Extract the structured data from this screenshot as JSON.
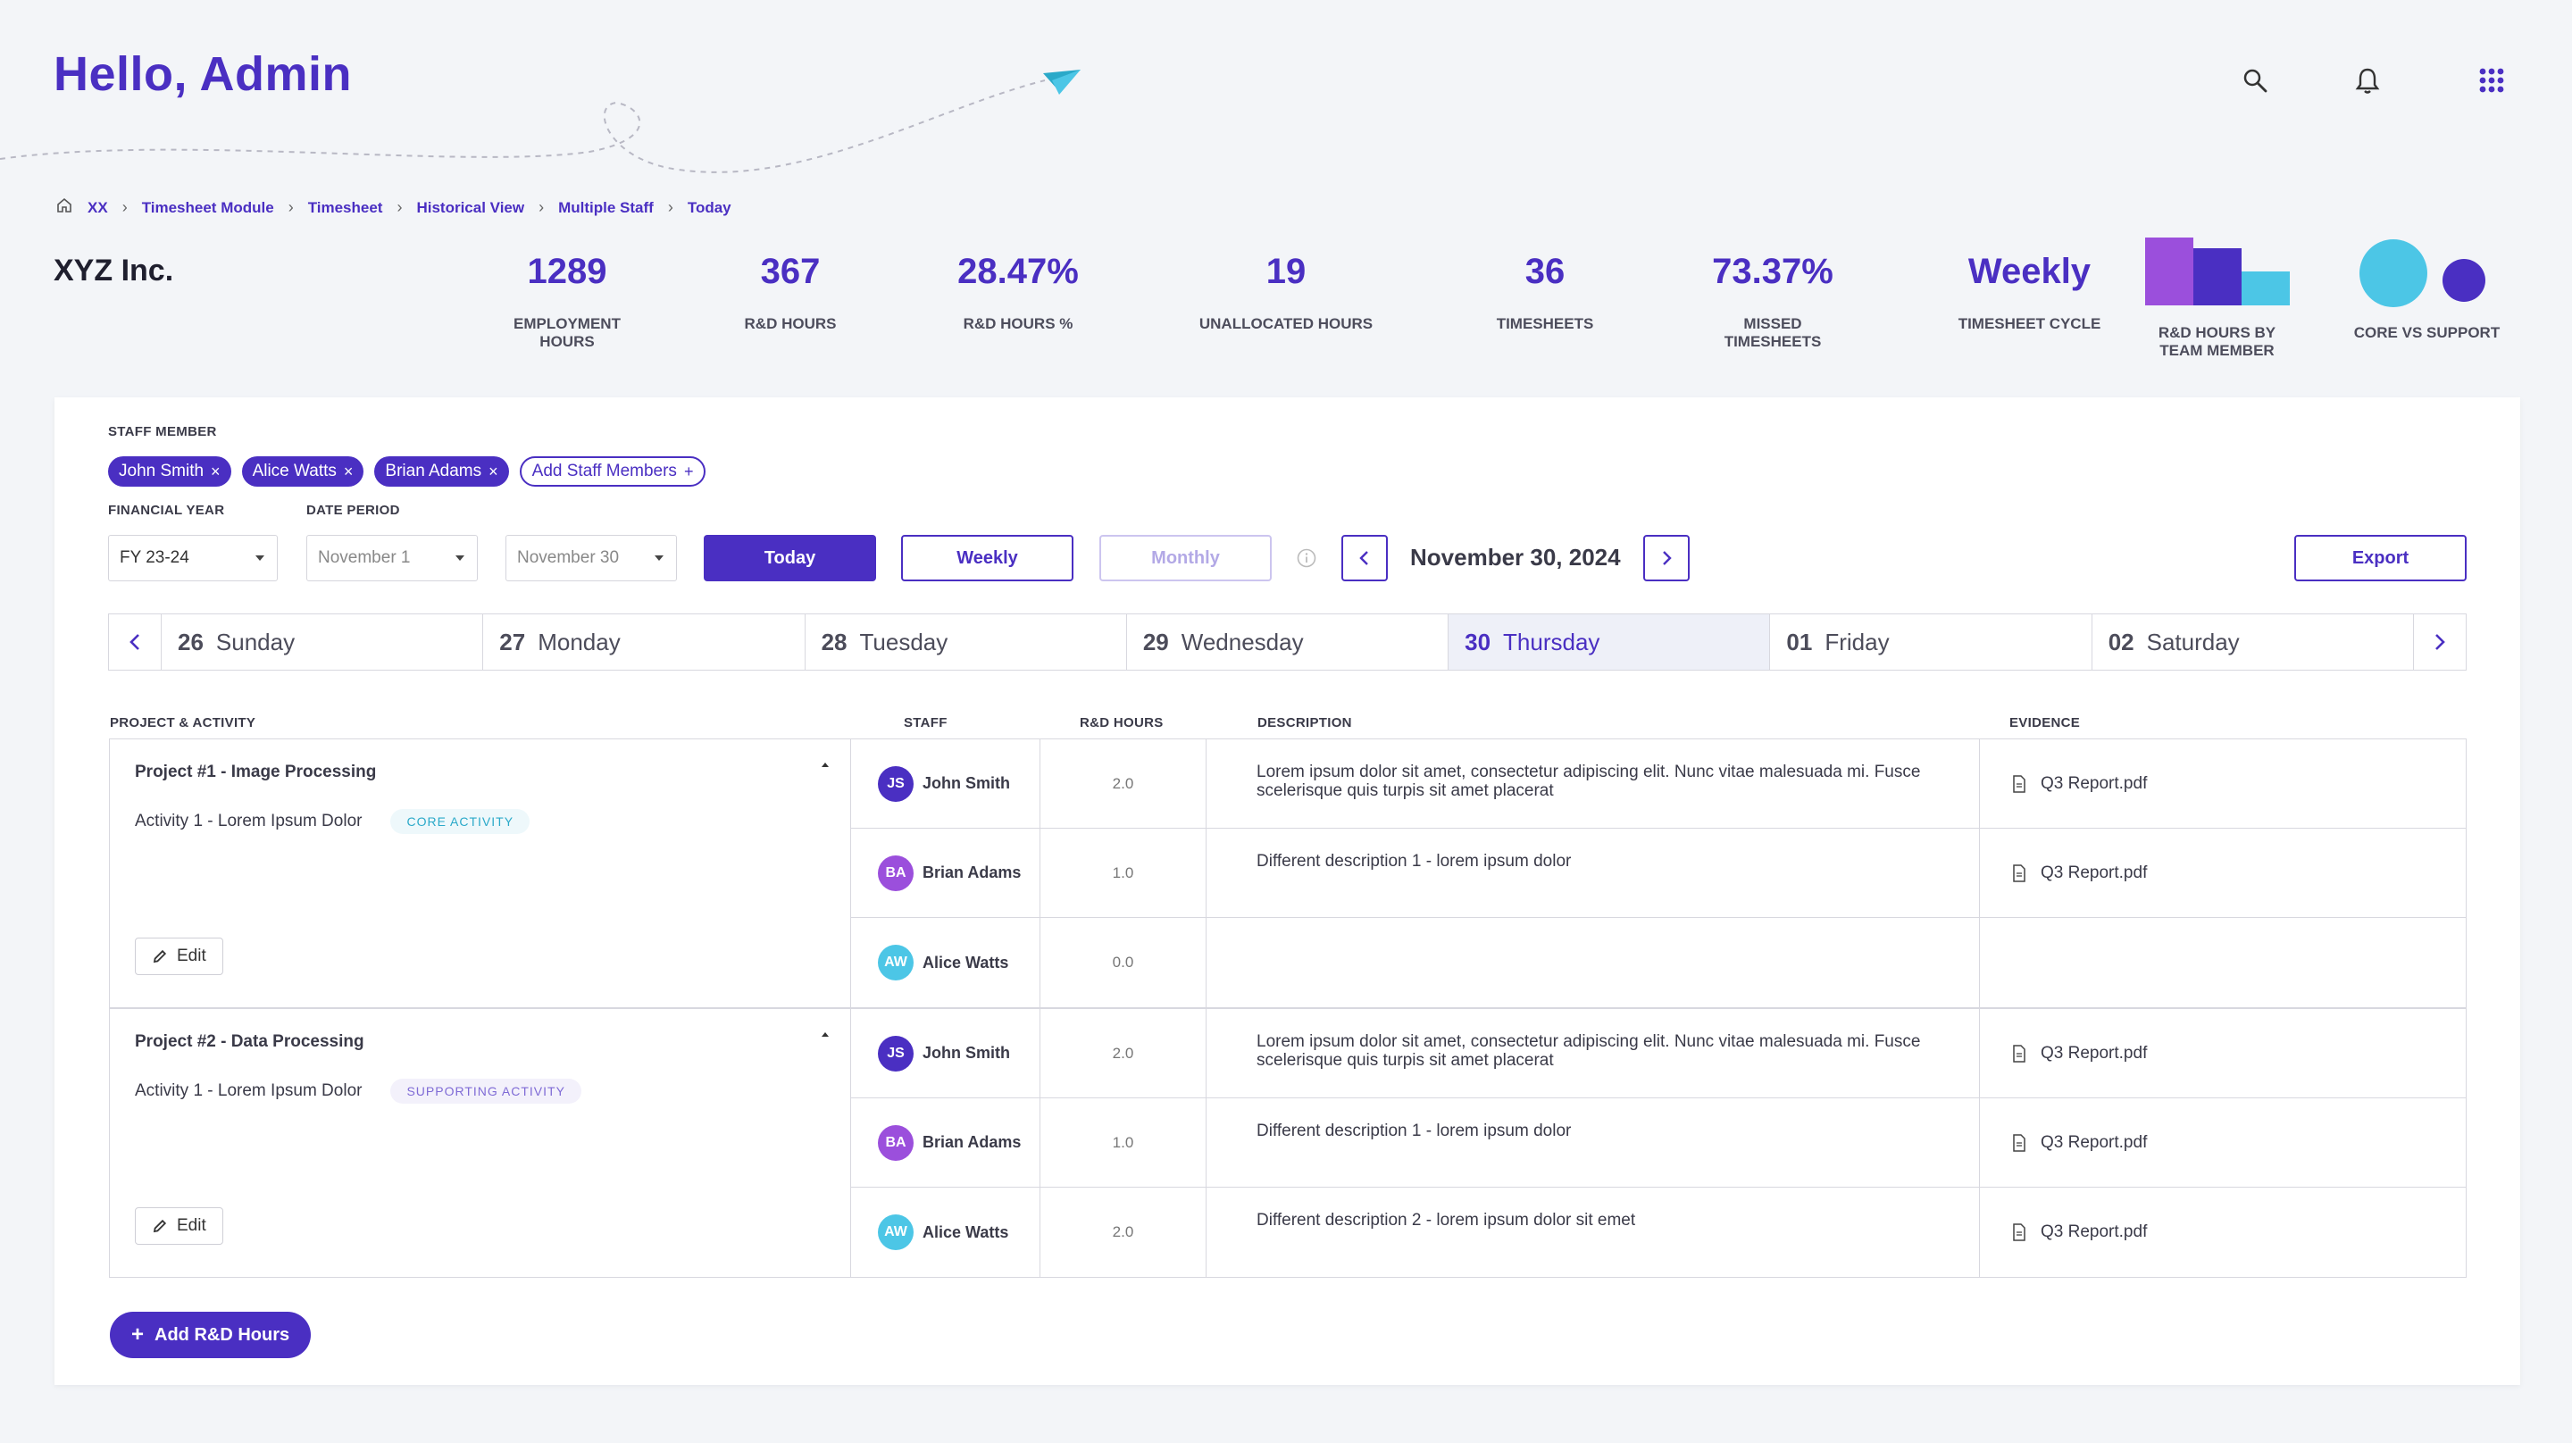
{
  "header": {
    "greeting": "Hello, Admin",
    "icons": [
      "search-icon",
      "bell-icon",
      "apps-grid-icon"
    ]
  },
  "breadcrumb": {
    "home_icon": "home-icon",
    "items": [
      "XX",
      "Timesheet Module",
      "Timesheet",
      "Historical View",
      "Multiple Staff",
      "Today"
    ]
  },
  "company": "XYZ Inc.",
  "stats": [
    {
      "value": "1289",
      "label": "EMPLOYMENT HOURS"
    },
    {
      "value": "367",
      "label": "R&D HOURS"
    },
    {
      "value": "28.47%",
      "label": "R&D HOURS %"
    },
    {
      "value": "19",
      "label": "UNALLOCATED HOURS"
    },
    {
      "value": "36",
      "label": "TIMESHEETS"
    },
    {
      "value": "73.37%",
      "label": "MISSED TIMESHEETS"
    },
    {
      "value": "Weekly",
      "label": "TIMESHEET CYCLE"
    }
  ],
  "mini_charts": {
    "team_label": "R&D HOURS BY TEAM MEMBER",
    "team_colors": [
      "#9b4fdc",
      "#4a2fc2",
      "#4cc6e6"
    ],
    "core_label": "CORE VS SUPPORT",
    "core_colors": [
      "#4cc6e6",
      "#4a2fc2"
    ]
  },
  "filters": {
    "staff_label": "STAFF MEMBER",
    "staff_chips": [
      "John Smith",
      "Alice Watts",
      "Brian Adams"
    ],
    "add_staff": "Add Staff Members",
    "fy_label": "FINANCIAL YEAR",
    "fy_value": "FY 23-24",
    "period_label": "DATE PERIOD",
    "period_from": "November 1",
    "period_to": "November 30",
    "btn_today": "Today",
    "btn_weekly": "Weekly",
    "btn_monthly": "Monthly",
    "current_date": "November 30, 2024",
    "btn_export": "Export"
  },
  "days": [
    {
      "num": "26",
      "name": "Sunday"
    },
    {
      "num": "27",
      "name": "Monday"
    },
    {
      "num": "28",
      "name": "Tuesday"
    },
    {
      "num": "29",
      "name": "Wednesday"
    },
    {
      "num": "30",
      "name": "Thursday"
    },
    {
      "num": "01",
      "name": "Friday"
    },
    {
      "num": "02",
      "name": "Saturday"
    }
  ],
  "table": {
    "headers": [
      "PROJECT & ACTIVITY",
      "STAFF",
      "R&D HOURS",
      "DESCRIPTION",
      "EVIDENCE"
    ],
    "edit_label": "Edit",
    "projects": [
      {
        "name": "Project #1 - Image Processing",
        "activity": "Activity 1 - Lorem Ipsum Dolor",
        "tag": "CORE ACTIVITY",
        "rows": [
          {
            "initials": "JS",
            "staff": "John Smith",
            "hours": "2.0",
            "desc": "Lorem ipsum dolor sit amet, consectetur adipiscing elit. Nunc vitae malesuada mi. Fusce scelerisque quis turpis sit amet placerat",
            "evidence": "Q3 Report.pdf"
          },
          {
            "initials": "BA",
            "staff": "Brian Adams",
            "hours": "1.0",
            "desc": "Different description 1 - lorem ipsum dolor",
            "evidence": "Q3 Report.pdf"
          },
          {
            "initials": "AW",
            "staff": "Alice Watts",
            "hours": "0.0",
            "desc": "",
            "evidence": ""
          }
        ]
      },
      {
        "name": "Project #2 - Data Processing",
        "activity": "Activity 1 - Lorem Ipsum Dolor",
        "tag": "SUPPORTING ACTIVITY",
        "rows": [
          {
            "initials": "JS",
            "staff": "John Smith",
            "hours": "2.0",
            "desc": "Lorem ipsum dolor sit amet, consectetur adipiscing elit. Nunc vitae malesuada mi. Fusce scelerisque quis turpis sit amet placerat",
            "evidence": "Q3 Report.pdf"
          },
          {
            "initials": "BA",
            "staff": "Brian Adams",
            "hours": "1.0",
            "desc": "Different description 1 - lorem ipsum dolor",
            "evidence": "Q3 Report.pdf"
          },
          {
            "initials": "AW",
            "staff": "Alice Watts",
            "hours": "2.0",
            "desc": "Different description 2 - lorem ipsum dolor sit emet",
            "evidence": "Q3 Report.pdf"
          }
        ]
      }
    ]
  },
  "add_button": "Add R&D Hours",
  "colors": {
    "accent": "#4a2fc2",
    "avatar_js": "#4a2fc2",
    "avatar_ba": "#9b4fdc",
    "avatar_aw": "#4cc6e6"
  }
}
